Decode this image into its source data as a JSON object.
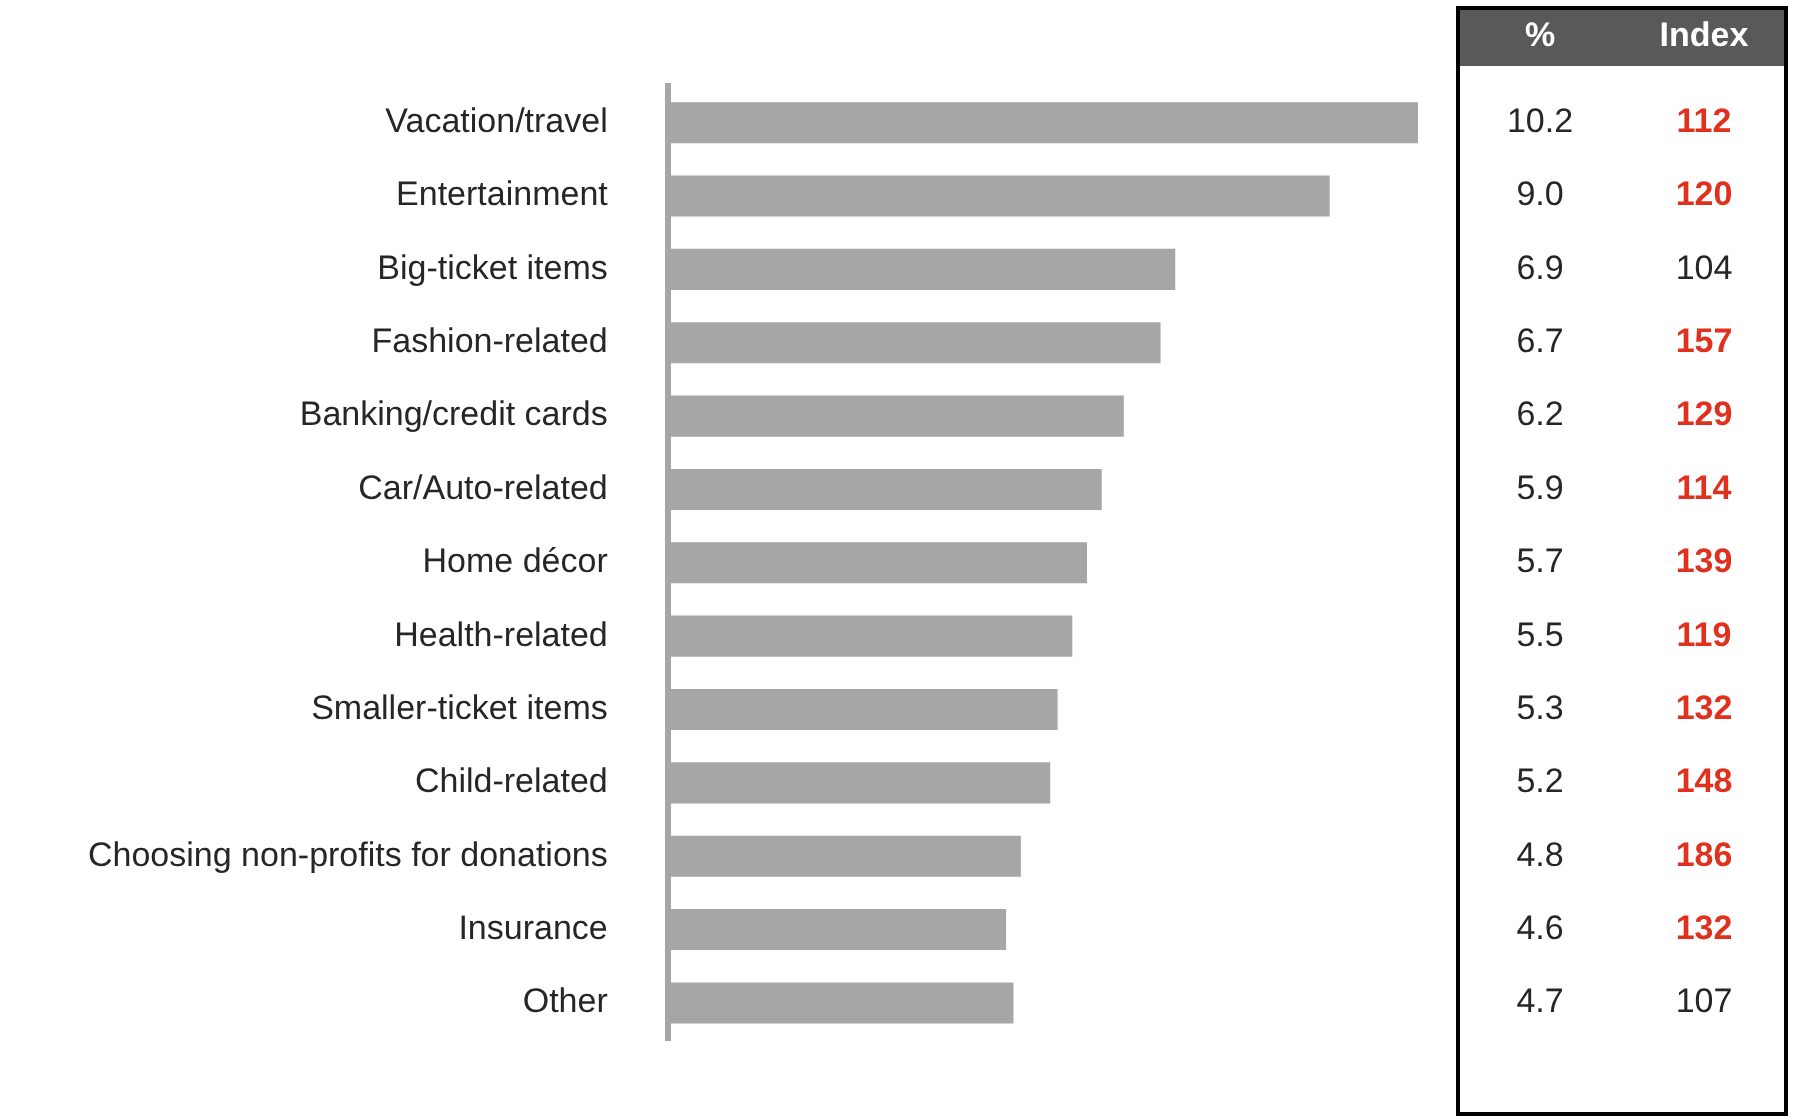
{
  "chart_data": {
    "type": "bar",
    "orientation": "horizontal",
    "data_labels": true,
    "legend": false,
    "xlim": [
      0,
      10.2
    ],
    "categories": [
      "Vacation/travel",
      "Entertainment",
      "Big-ticket items",
      "Fashion-related",
      "Banking/credit cards",
      "Car/Auto-related",
      "Home décor",
      "Health-related",
      "Smaller-ticket items",
      "Child-related",
      "Choosing non-profits for donations",
      "Insurance",
      "Other"
    ],
    "series": [
      {
        "name": "%",
        "color": "#a6a6a6",
        "values": [
          10.2,
          9.0,
          6.9,
          6.7,
          6.2,
          5.9,
          5.7,
          5.5,
          5.3,
          5.2,
          4.8,
          4.6,
          4.7
        ],
        "value_labels": [
          "10.2",
          "9.0",
          "6.9",
          "6.7",
          "6.2",
          "5.9",
          "5.7",
          "5.5",
          "5.3",
          "5.2",
          "4.8",
          "4.6",
          "4.7"
        ]
      },
      {
        "name": "Index",
        "type": "other",
        "values": [
          null,
          null,
          null,
          null,
          null,
          null,
          null,
          null,
          null,
          null,
          null,
          null,
          null
        ],
        "value_labels": [
          "112",
          "120",
          "104",
          "157",
          "129",
          "114",
          "139",
          "119",
          "132",
          "148",
          "186",
          "132",
          "107"
        ],
        "colors": [
          "#e0301e",
          "#e0301e",
          "#262626",
          "#e0301e",
          "#e0301e",
          "#e0301e",
          "#e0301e",
          "#e0301e",
          "#e0301e",
          "#e0301e",
          "#e0301e",
          "#e0301e",
          "#262626"
        ]
      }
    ]
  }
}
